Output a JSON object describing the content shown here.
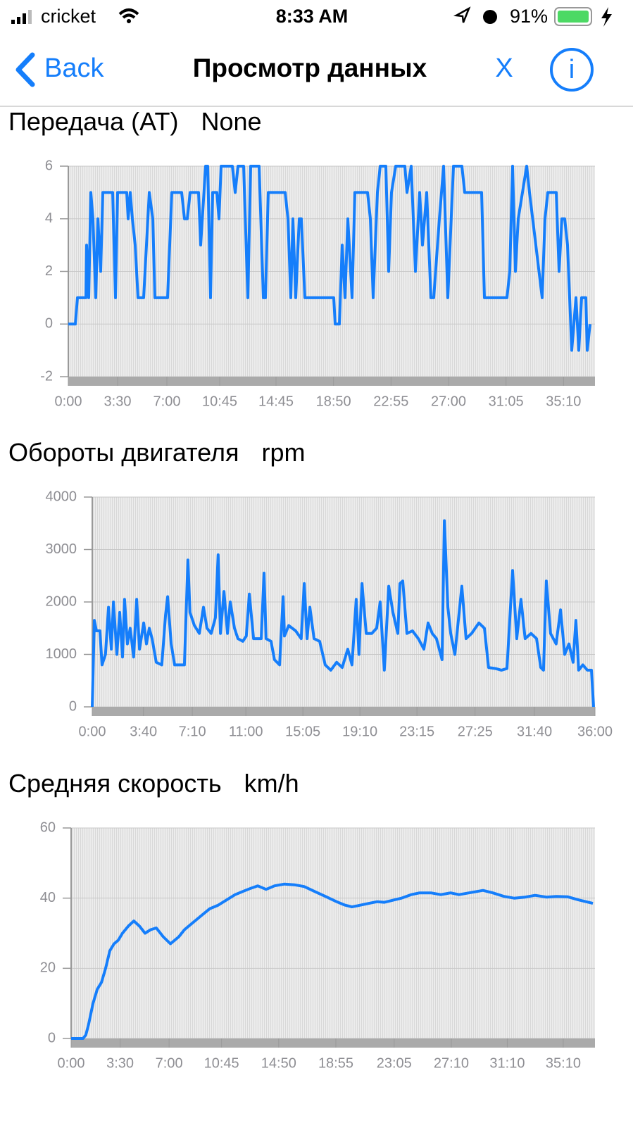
{
  "status_bar": {
    "carrier": "cricket",
    "time": "8:33 AM",
    "battery": "91%"
  },
  "nav": {
    "back": "Back",
    "title": "Просмотр данных",
    "close": "X",
    "info": "i"
  },
  "chart_data": [
    {
      "type": "line",
      "title": "Передача (AT)",
      "unit": "None",
      "x": [
        0,
        30,
        39,
        75,
        78,
        87,
        96,
        105,
        117,
        126,
        138,
        147,
        189,
        201,
        210,
        249,
        255,
        264,
        273,
        285,
        297,
        321,
        345,
        360,
        369,
        423,
        441,
        483,
        495,
        507,
        519,
        555,
        564,
        585,
        594,
        606,
        615,
        633,
        642,
        651,
        699,
        711,
        723,
        747,
        765,
        777,
        813,
        831,
        840,
        852,
        924,
        936,
        948,
        957,
        969,
        984,
        993,
        1008,
        1131,
        1137,
        1155,
        1167,
        1179,
        1191,
        1209,
        1221,
        1275,
        1287,
        1299,
        1317,
        1329,
        1353,
        1365,
        1377,
        1395,
        1434,
        1443,
        1461,
        1479,
        1497,
        1509,
        1527,
        1545,
        1557,
        1581,
        1599,
        1617,
        1641,
        1677,
        1689,
        1761,
        1773,
        1869,
        1881,
        1893,
        1905,
        1917,
        1935,
        1953,
        1965,
        2019,
        2031,
        2043,
        2079,
        2091,
        2103,
        2115,
        2127,
        2145,
        2163,
        2175,
        2187,
        2205,
        2211,
        2223
      ],
      "series": [
        {
          "color": "#157efb",
          "values": [
            0,
            0,
            1,
            1,
            3,
            1,
            5,
            4,
            1,
            4,
            2,
            5,
            5,
            1,
            5,
            5,
            4,
            5,
            4,
            3,
            1,
            1,
            5,
            4,
            1,
            1,
            5,
            5,
            4,
            4,
            5,
            5,
            3,
            6,
            6,
            1,
            5,
            5,
            4,
            6,
            6,
            5,
            6,
            6,
            1,
            6,
            6,
            1,
            1,
            5,
            5,
            4,
            1,
            4,
            1,
            4,
            4,
            1,
            1,
            0,
            0,
            3,
            1,
            4,
            1,
            5,
            5,
            4,
            1,
            5,
            6,
            6,
            2,
            5,
            6,
            6,
            5,
            6,
            2,
            5,
            3,
            5,
            1,
            1,
            4,
            6,
            1,
            6,
            6,
            5,
            5,
            1,
            1,
            2,
            6,
            2,
            4,
            5,
            6,
            5,
            1,
            4,
            5,
            5,
            2,
            4,
            4,
            3,
            -1,
            1,
            -1,
            1,
            1,
            -1,
            0
          ]
        }
      ],
      "xlim": [
        0,
        2244
      ],
      "ylim": [
        -2,
        6
      ],
      "yticks": [
        -2,
        0,
        2,
        4,
        6
      ],
      "grid": true,
      "xticks": [
        {
          "value": 0,
          "label": "0:00"
        },
        {
          "value": 210,
          "label": "3:30"
        },
        {
          "value": 420,
          "label": "7:00"
        },
        {
          "value": 645,
          "label": "10:45"
        },
        {
          "value": 885,
          "label": "14:45"
        },
        {
          "value": 1130,
          "label": "18:50"
        },
        {
          "value": 1375,
          "label": "22:55"
        },
        {
          "value": 1620,
          "label": "27:00"
        },
        {
          "value": 1865,
          "label": "31:05"
        },
        {
          "value": 2110,
          "label": "35:10"
        }
      ]
    },
    {
      "type": "line",
      "title": "Обороты двигателя",
      "unit": "rpm",
      "x": [
        0,
        9,
        18,
        33,
        42,
        57,
        70,
        82,
        91,
        106,
        118,
        130,
        139,
        151,
        163,
        178,
        191,
        203,
        221,
        233,
        245,
        257,
        275,
        299,
        315,
        324,
        339,
        354,
        396,
        411,
        420,
        439,
        460,
        478,
        493,
        511,
        529,
        541,
        551,
        566,
        581,
        593,
        611,
        626,
        647,
        662,
        675,
        693,
        726,
        738,
        747,
        768,
        783,
        805,
        820,
        826,
        844,
        874,
        898,
        911,
        923,
        935,
        953,
        977,
        1001,
        1025,
        1050,
        1074,
        1098,
        1116,
        1134,
        1146,
        1159,
        1177,
        1201,
        1222,
        1237,
        1255,
        1274,
        1292,
        1313,
        1322,
        1334,
        1352,
        1376,
        1401,
        1425,
        1443,
        1461,
        1479,
        1503,
        1513,
        1528,
        1540,
        1558,
        1588,
        1606,
        1630,
        1661,
        1685,
        1703,
        1733,
        1758,
        1782,
        1806,
        1824,
        1842,
        1860,
        1885,
        1909,
        1927,
        1939,
        1951,
        1969,
        1993,
        2012,
        2030,
        2048,
        2066,
        2078,
        2090,
        2108,
        2127,
        2145,
        2154
      ],
      "series": [
        {
          "color": "#157efb",
          "values": [
            0,
            1650,
            1450,
            1450,
            800,
            1000,
            1900,
            1100,
            2000,
            1000,
            1800,
            950,
            2050,
            1200,
            1500,
            950,
            2050,
            1100,
            1600,
            1200,
            1500,
            1300,
            850,
            800,
            1750,
            2100,
            1200,
            800,
            800,
            2800,
            1800,
            1550,
            1400,
            1900,
            1500,
            1400,
            1700,
            2900,
            1400,
            2200,
            1400,
            2000,
            1500,
            1300,
            1250,
            1350,
            2150,
            1300,
            1300,
            2550,
            1300,
            1250,
            900,
            800,
            2100,
            1350,
            1550,
            1450,
            1300,
            2350,
            1300,
            1900,
            1300,
            1250,
            800,
            700,
            850,
            750,
            1100,
            800,
            2050,
            1000,
            2350,
            1400,
            1400,
            1500,
            2000,
            700,
            2300,
            1800,
            1400,
            2350,
            2400,
            1400,
            1450,
            1300,
            1100,
            1600,
            1400,
            1300,
            900,
            3550,
            1900,
            1400,
            1000,
            2300,
            1300,
            1400,
            1600,
            1500,
            750,
            730,
            700,
            730,
            2600,
            1300,
            2050,
            1300,
            1400,
            1300,
            750,
            700,
            2400,
            1400,
            1200,
            1850,
            1000,
            1200,
            850,
            1650,
            700,
            800,
            700,
            700,
            0
          ]
        }
      ],
      "xlim": [
        0,
        2160
      ],
      "ylim": [
        0,
        4000
      ],
      "yticks": [
        0,
        1000,
        2000,
        3000,
        4000
      ],
      "grid": true,
      "xticks": [
        {
          "value": 0,
          "label": "0:00"
        },
        {
          "value": 220,
          "label": "3:40"
        },
        {
          "value": 430,
          "label": "7:10"
        },
        {
          "value": 660,
          "label": "11:00"
        },
        {
          "value": 905,
          "label": "15:05"
        },
        {
          "value": 1150,
          "label": "19:10"
        },
        {
          "value": 1395,
          "label": "23:15"
        },
        {
          "value": 1645,
          "label": "27:25"
        },
        {
          "value": 1900,
          "label": "31:40"
        },
        {
          "value": 2160,
          "label": "36:00"
        }
      ]
    },
    {
      "type": "line",
      "title": "Средняя скорость",
      "unit": "km/h",
      "x": [
        0,
        51,
        63,
        75,
        94,
        112,
        130,
        148,
        166,
        184,
        202,
        220,
        245,
        269,
        293,
        317,
        341,
        365,
        395,
        426,
        462,
        486,
        522,
        558,
        595,
        631,
        667,
        703,
        740,
        770,
        800,
        836,
        872,
        915,
        957,
        999,
        1041,
        1090,
        1138,
        1174,
        1204,
        1241,
        1277,
        1313,
        1343,
        1373,
        1416,
        1458,
        1494,
        1543,
        1585,
        1627,
        1663,
        1706,
        1766,
        1808,
        1856,
        1899,
        1947,
        1989,
        2038,
        2080,
        2128,
        2176,
        2237
      ],
      "series": [
        {
          "color": "#157efb",
          "values": [
            0,
            0,
            1,
            4,
            10,
            14,
            16,
            20,
            25,
            27,
            28,
            30,
            32,
            33.5,
            32,
            30,
            31,
            31.5,
            29,
            27,
            29,
            31,
            33,
            35,
            37,
            38,
            39.5,
            41,
            42,
            42.8,
            43.5,
            42.5,
            43.5,
            44,
            43.8,
            43.3,
            42,
            40.5,
            39,
            38,
            37.5,
            38,
            38.5,
            39,
            38.8,
            39.3,
            40,
            41,
            41.5,
            41.5,
            41,
            41.5,
            41,
            41.5,
            42.2,
            41.5,
            40.5,
            40,
            40.3,
            40.8,
            40.3,
            40.5,
            40.4,
            39.5,
            38.5
          ]
        }
      ],
      "xlim": [
        0,
        2246
      ],
      "ylim": [
        0,
        60
      ],
      "yticks": [
        0,
        20,
        40,
        60
      ],
      "grid": true,
      "xticks": [
        {
          "value": 0,
          "label": "0:00"
        },
        {
          "value": 210,
          "label": "3:30"
        },
        {
          "value": 420,
          "label": "7:00"
        },
        {
          "value": 645,
          "label": "10:45"
        },
        {
          "value": 890,
          "label": "14:50"
        },
        {
          "value": 1135,
          "label": "18:55"
        },
        {
          "value": 1385,
          "label": "23:05"
        },
        {
          "value": 1630,
          "label": "27:10"
        },
        {
          "value": 1870,
          "label": "31:10"
        },
        {
          "value": 2110,
          "label": "35:10"
        }
      ]
    }
  ]
}
